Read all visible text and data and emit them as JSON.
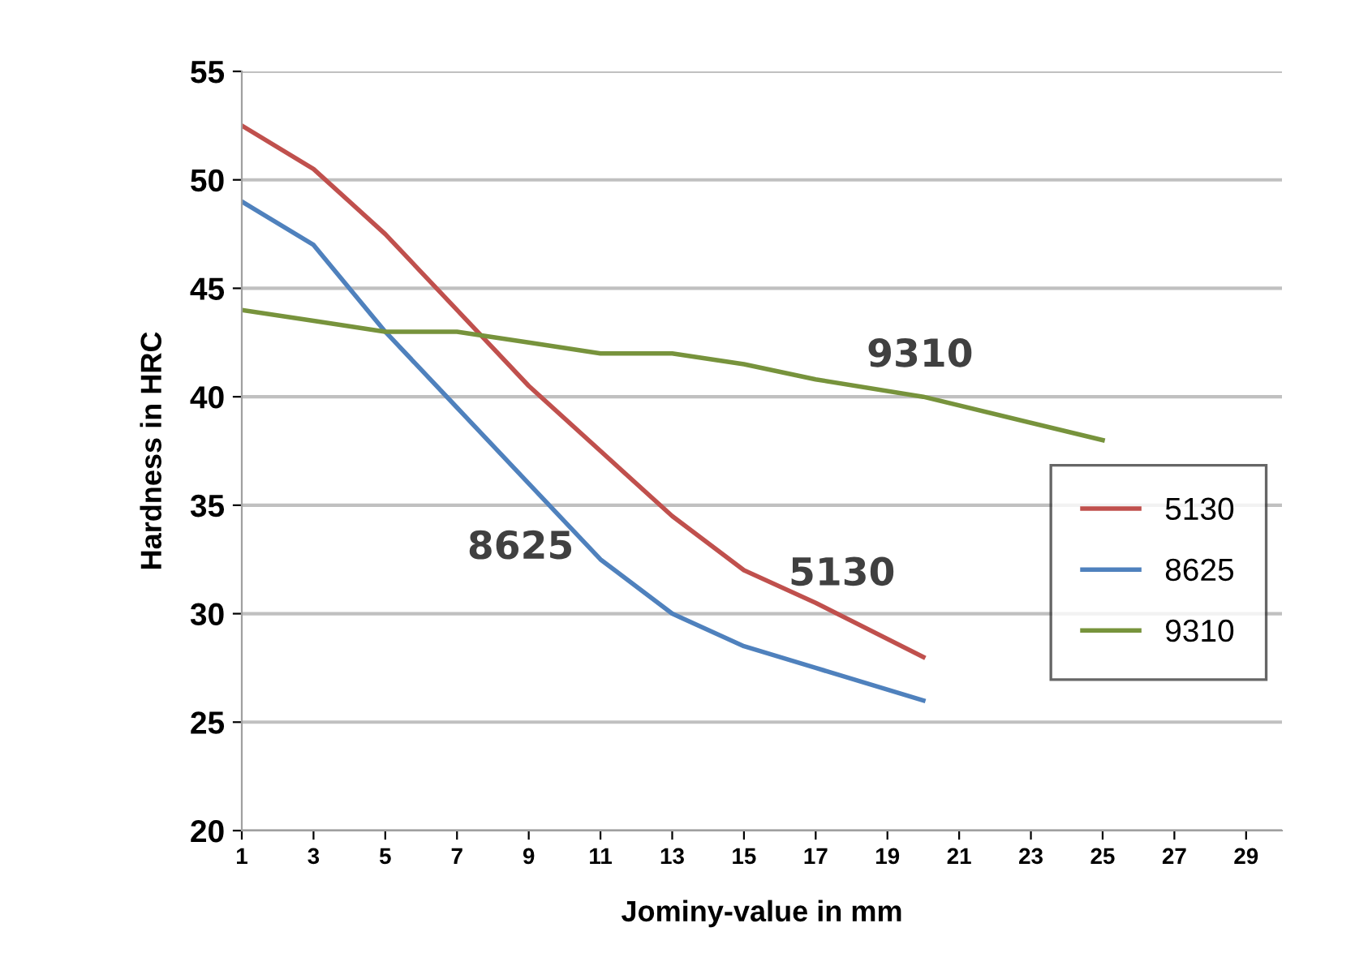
{
  "chart_data": {
    "type": "line",
    "xlabel": "Jominy-value in mm",
    "ylabel": "Hardness in HRC",
    "xlim": [
      1,
      30
    ],
    "xticks": [
      1,
      3,
      5,
      7,
      9,
      11,
      13,
      15,
      17,
      19,
      21,
      23,
      25,
      27,
      29
    ],
    "ylim": [
      20,
      55
    ],
    "yticks": [
      20,
      25,
      30,
      35,
      40,
      45,
      50,
      55
    ],
    "grid": "y",
    "legend": "right",
    "marker": "none",
    "line_style": "solid",
    "series": [
      {
        "name": "5130",
        "color": "#c0504d",
        "x": [
          1,
          3,
          5,
          7,
          9,
          11,
          13,
          15,
          17,
          20
        ],
        "values": [
          52.5,
          50.5,
          47.5,
          44,
          40.5,
          37.5,
          34.5,
          32,
          30.5,
          28
        ]
      },
      {
        "name": "8625",
        "color": "#4f81bd",
        "x": [
          1,
          3,
          5,
          7,
          9,
          11,
          13,
          15,
          17,
          20
        ],
        "values": [
          49,
          47,
          43,
          39.5,
          36,
          32.5,
          30,
          28.5,
          27.5,
          26
        ]
      },
      {
        "name": "9310",
        "color": "#77933c",
        "x": [
          1,
          3,
          5,
          7,
          9,
          11,
          13,
          15,
          17,
          20,
          25
        ],
        "values": [
          44,
          43.5,
          43,
          43,
          42.5,
          42,
          42,
          41.5,
          40.8,
          40,
          38
        ]
      }
    ],
    "annotations": [
      "8625",
      "5130",
      "9310"
    ]
  }
}
